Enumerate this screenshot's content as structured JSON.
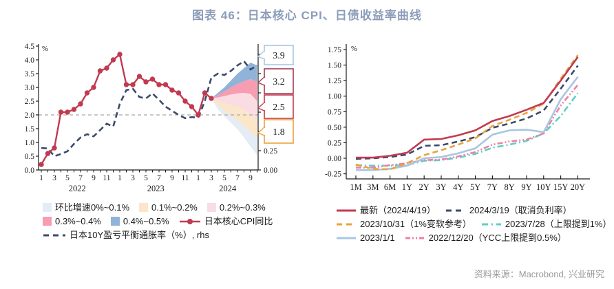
{
  "title": "图表 46：日本核心 CPI、日债收益率曲线",
  "source": "资料来源：Macrobond, 兴业研究",
  "colors": {
    "title": "#8a9db8",
    "source_text": "#999999",
    "axis": "#1a1a1a",
    "gridline": "#a9a9a9",
    "cpi_line": "#c23a50",
    "breakeven_line": "#3a4a6b",
    "band_0_01": "#e4ecf5",
    "band_01_02": "#fbe6c9",
    "band_02_03": "#fadde3",
    "band_03_04": "#f79cb1",
    "band_04_05": "#90b4d8",
    "callout_39": "#a9c6e3",
    "callout_32": "#a53b52",
    "callout_25": "#c23a50",
    "callout_18": "#e9a23b",
    "curve_latest": "#c23a50",
    "curve_20240319": "#3a4a6b",
    "curve_20231031": "#eaa23c",
    "curve_20230728": "#5ecec6",
    "curve_20230101": "#a7c6e2",
    "curve_20221220": "#f080a0"
  },
  "legend_left": {
    "items": [
      {
        "label": "环比增速0%~0.1%"
      },
      {
        "label": "0.1%~0.2%"
      },
      {
        "label": "0.2%~0.3%"
      },
      {
        "label": "0.3%~0.4%"
      },
      {
        "label": "0.4%~0.5%"
      },
      {
        "label": "日本核心CPI同比"
      },
      {
        "label": "日本10Y盈亏平衡通胀率（%）, rhs"
      }
    ]
  },
  "legend_right": {
    "items": [
      {
        "label": "最新（2024/4/19）"
      },
      {
        "label": "2024/3/19（取消负利率）"
      },
      {
        "label": "2023/10/31（1%变软参考）"
      },
      {
        "label": "2023/7/28（上限提到1%）"
      },
      {
        "label": "2023/1/1"
      },
      {
        "label": "2022/12/20（YCC上限提到0.5%）"
      }
    ]
  },
  "chart_data": [
    {
      "type": "line",
      "name": "japan-core-cpi-fan-chart",
      "unit": "%",
      "ylim_left": [
        0,
        4.5
      ],
      "ytick_step_left": 0.5,
      "gridline_at": 2.0,
      "right_axis_visible_labels": [
        "0.00",
        "0.25"
      ],
      "x_start": "2022-01",
      "x_end": "2024-10",
      "year_labels": [
        "2022",
        "2023",
        "2024"
      ],
      "month_tick_labels": [
        "1",
        "3",
        "5",
        "7",
        "9",
        "11"
      ],
      "series": [
        {
          "name": "日本核心CPI同比",
          "style": "solid-marker",
          "axis": "lhs",
          "values": [
            0.2,
            0.6,
            0.8,
            2.1,
            2.1,
            2.2,
            2.4,
            2.8,
            3.0,
            3.6,
            3.7,
            4.0,
            4.2,
            3.1,
            3.1,
            3.4,
            3.2,
            3.3,
            3.1,
            3.1,
            2.9,
            2.8,
            2.5,
            2.3,
            2.0,
            2.8,
            2.6
          ]
        },
        {
          "name": "日本10Y盈亏平衡通胀率（%）, rhs",
          "style": "dashed",
          "axis": "rhs",
          "values": [
            0.8,
            0.78,
            0.5,
            0.58,
            0.68,
            0.95,
            1.18,
            1.3,
            1.22,
            1.45,
            1.68,
            1.58,
            2.4,
            2.9,
            2.95,
            2.65,
            2.6,
            2.78,
            2.55,
            2.3,
            2.15,
            2.0,
            1.88,
            1.92,
            1.9,
            2.5,
            3.35,
            3.5,
            3.45,
            3.6,
            3.8,
            3.95,
            3.65,
            3.8
          ]
        }
      ],
      "fan": {
        "start_index": 26,
        "band_names": [
          "0.4%~0.5%",
          "0.3%~0.4%",
          "0.2%~0.3%",
          "0.1%~0.2%",
          "0%~0.1%"
        ],
        "boundaries": [
          [
            2.6,
            2.8,
            3.0,
            3.25,
            3.5,
            3.7,
            3.9,
            3.8
          ],
          [
            2.6,
            2.72,
            2.85,
            3.0,
            3.12,
            3.22,
            3.3,
            3.2
          ],
          [
            2.6,
            2.63,
            2.68,
            2.74,
            2.78,
            2.8,
            2.76,
            2.5
          ],
          [
            2.6,
            2.5,
            2.42,
            2.35,
            2.28,
            2.18,
            2.0,
            1.8
          ],
          [
            2.6,
            2.35,
            2.15,
            1.98,
            1.8,
            1.6,
            1.38,
            1.15
          ],
          [
            2.6,
            2.2,
            1.95,
            1.72,
            1.48,
            1.18,
            0.85,
            0.55
          ]
        ]
      },
      "callouts": [
        {
          "label": "3.9"
        },
        {
          "label": "3.2"
        },
        {
          "label": "2.5"
        },
        {
          "label": "1.8"
        }
      ]
    },
    {
      "type": "line",
      "name": "jgb-yield-curves",
      "unit": "%",
      "ylim": [
        -0.25,
        1.75
      ],
      "ytick_step": 0.25,
      "categories": [
        "1M",
        "3M",
        "6M",
        "1Y",
        "2Y",
        "3Y",
        "4Y",
        "5Y",
        "7Y",
        "8Y",
        "9Y",
        "10Y",
        "15Y",
        "20Y"
      ],
      "series": [
        {
          "name": "最新（2024/4/19）",
          "style": "solid",
          "values": [
            0.01,
            0.01,
            0.04,
            0.09,
            0.3,
            0.31,
            0.37,
            0.45,
            0.6,
            0.68,
            0.78,
            0.89,
            1.25,
            1.63
          ]
        },
        {
          "name": "2024/3/19（取消负利率）",
          "style": "dashed",
          "values": [
            -0.01,
            0.0,
            0.02,
            0.06,
            0.2,
            0.21,
            0.27,
            0.34,
            0.49,
            0.56,
            0.64,
            0.77,
            1.12,
            1.49
          ]
        },
        {
          "name": "2023/10/31（1%变软参考）",
          "style": "dashed",
          "values": [
            -0.1,
            -0.17,
            -0.18,
            -0.08,
            0.05,
            0.13,
            0.22,
            0.32,
            0.52,
            0.62,
            0.73,
            0.88,
            1.28,
            1.66
          ]
        },
        {
          "name": "2023/7/28（上限提到1%）",
          "style": "dash-dot",
          "values": [
            -0.11,
            -0.12,
            -0.12,
            -0.11,
            -0.04,
            -0.03,
            0.01,
            0.07,
            0.17,
            0.22,
            0.28,
            0.4,
            0.68,
            1.05
          ]
        },
        {
          "name": "2023/1/1",
          "style": "solid",
          "values": [
            -0.19,
            -0.19,
            -0.17,
            -0.12,
            0.0,
            0.02,
            0.08,
            0.16,
            0.38,
            0.45,
            0.46,
            0.42,
            0.95,
            1.31
          ]
        },
        {
          "name": "2022/12/20（YCC上限提到0.5%）",
          "style": "dash-dot-dot",
          "values": [
            -0.15,
            -0.15,
            -0.11,
            -0.08,
            -0.03,
            -0.02,
            0.03,
            0.1,
            0.22,
            0.27,
            0.3,
            0.4,
            0.85,
            1.18
          ]
        }
      ]
    }
  ]
}
